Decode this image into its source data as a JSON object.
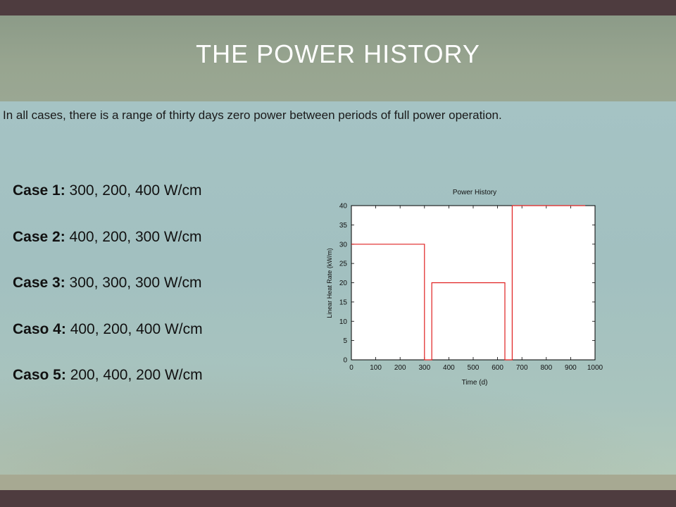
{
  "slide": {
    "title": "THE POWER HISTORY",
    "intro": "In all cases, there is a range of thirty days zero power between periods of full power operation.",
    "cases": [
      {
        "label": "Case 1:",
        "values": " 300, 200, 400 W/cm"
      },
      {
        "label": "Case 2:",
        "values": " 400, 200, 300 W/cm"
      },
      {
        "label": "Case 3:",
        "values": " 300, 300, 300 W/cm"
      },
      {
        "label": "Caso 4:",
        "values": " 400, 200, 400 W/cm"
      },
      {
        "label": "Caso 5:",
        "values": " 200, 400, 200 W/cm"
      }
    ]
  },
  "colors": {
    "frame": "#4e3c3f",
    "series": "#e02020"
  },
  "chart_data": {
    "type": "line",
    "title": "Power History",
    "xlabel": "Time  (d)",
    "ylabel": "Linear Heat Rate (kW/m)",
    "xlim": [
      0,
      1000
    ],
    "ylim": [
      0,
      40
    ],
    "xticks": [
      0,
      100,
      200,
      300,
      400,
      500,
      600,
      700,
      800,
      900,
      1000
    ],
    "yticks": [
      0,
      5,
      10,
      15,
      20,
      25,
      30,
      35,
      40
    ],
    "grid": false,
    "series": [
      {
        "x": [
          0,
          300,
          300,
          330,
          330,
          630,
          630,
          660,
          660,
          960
        ],
        "y": [
          30,
          30,
          0,
          0,
          20,
          20,
          0,
          0,
          40,
          40
        ]
      }
    ]
  }
}
